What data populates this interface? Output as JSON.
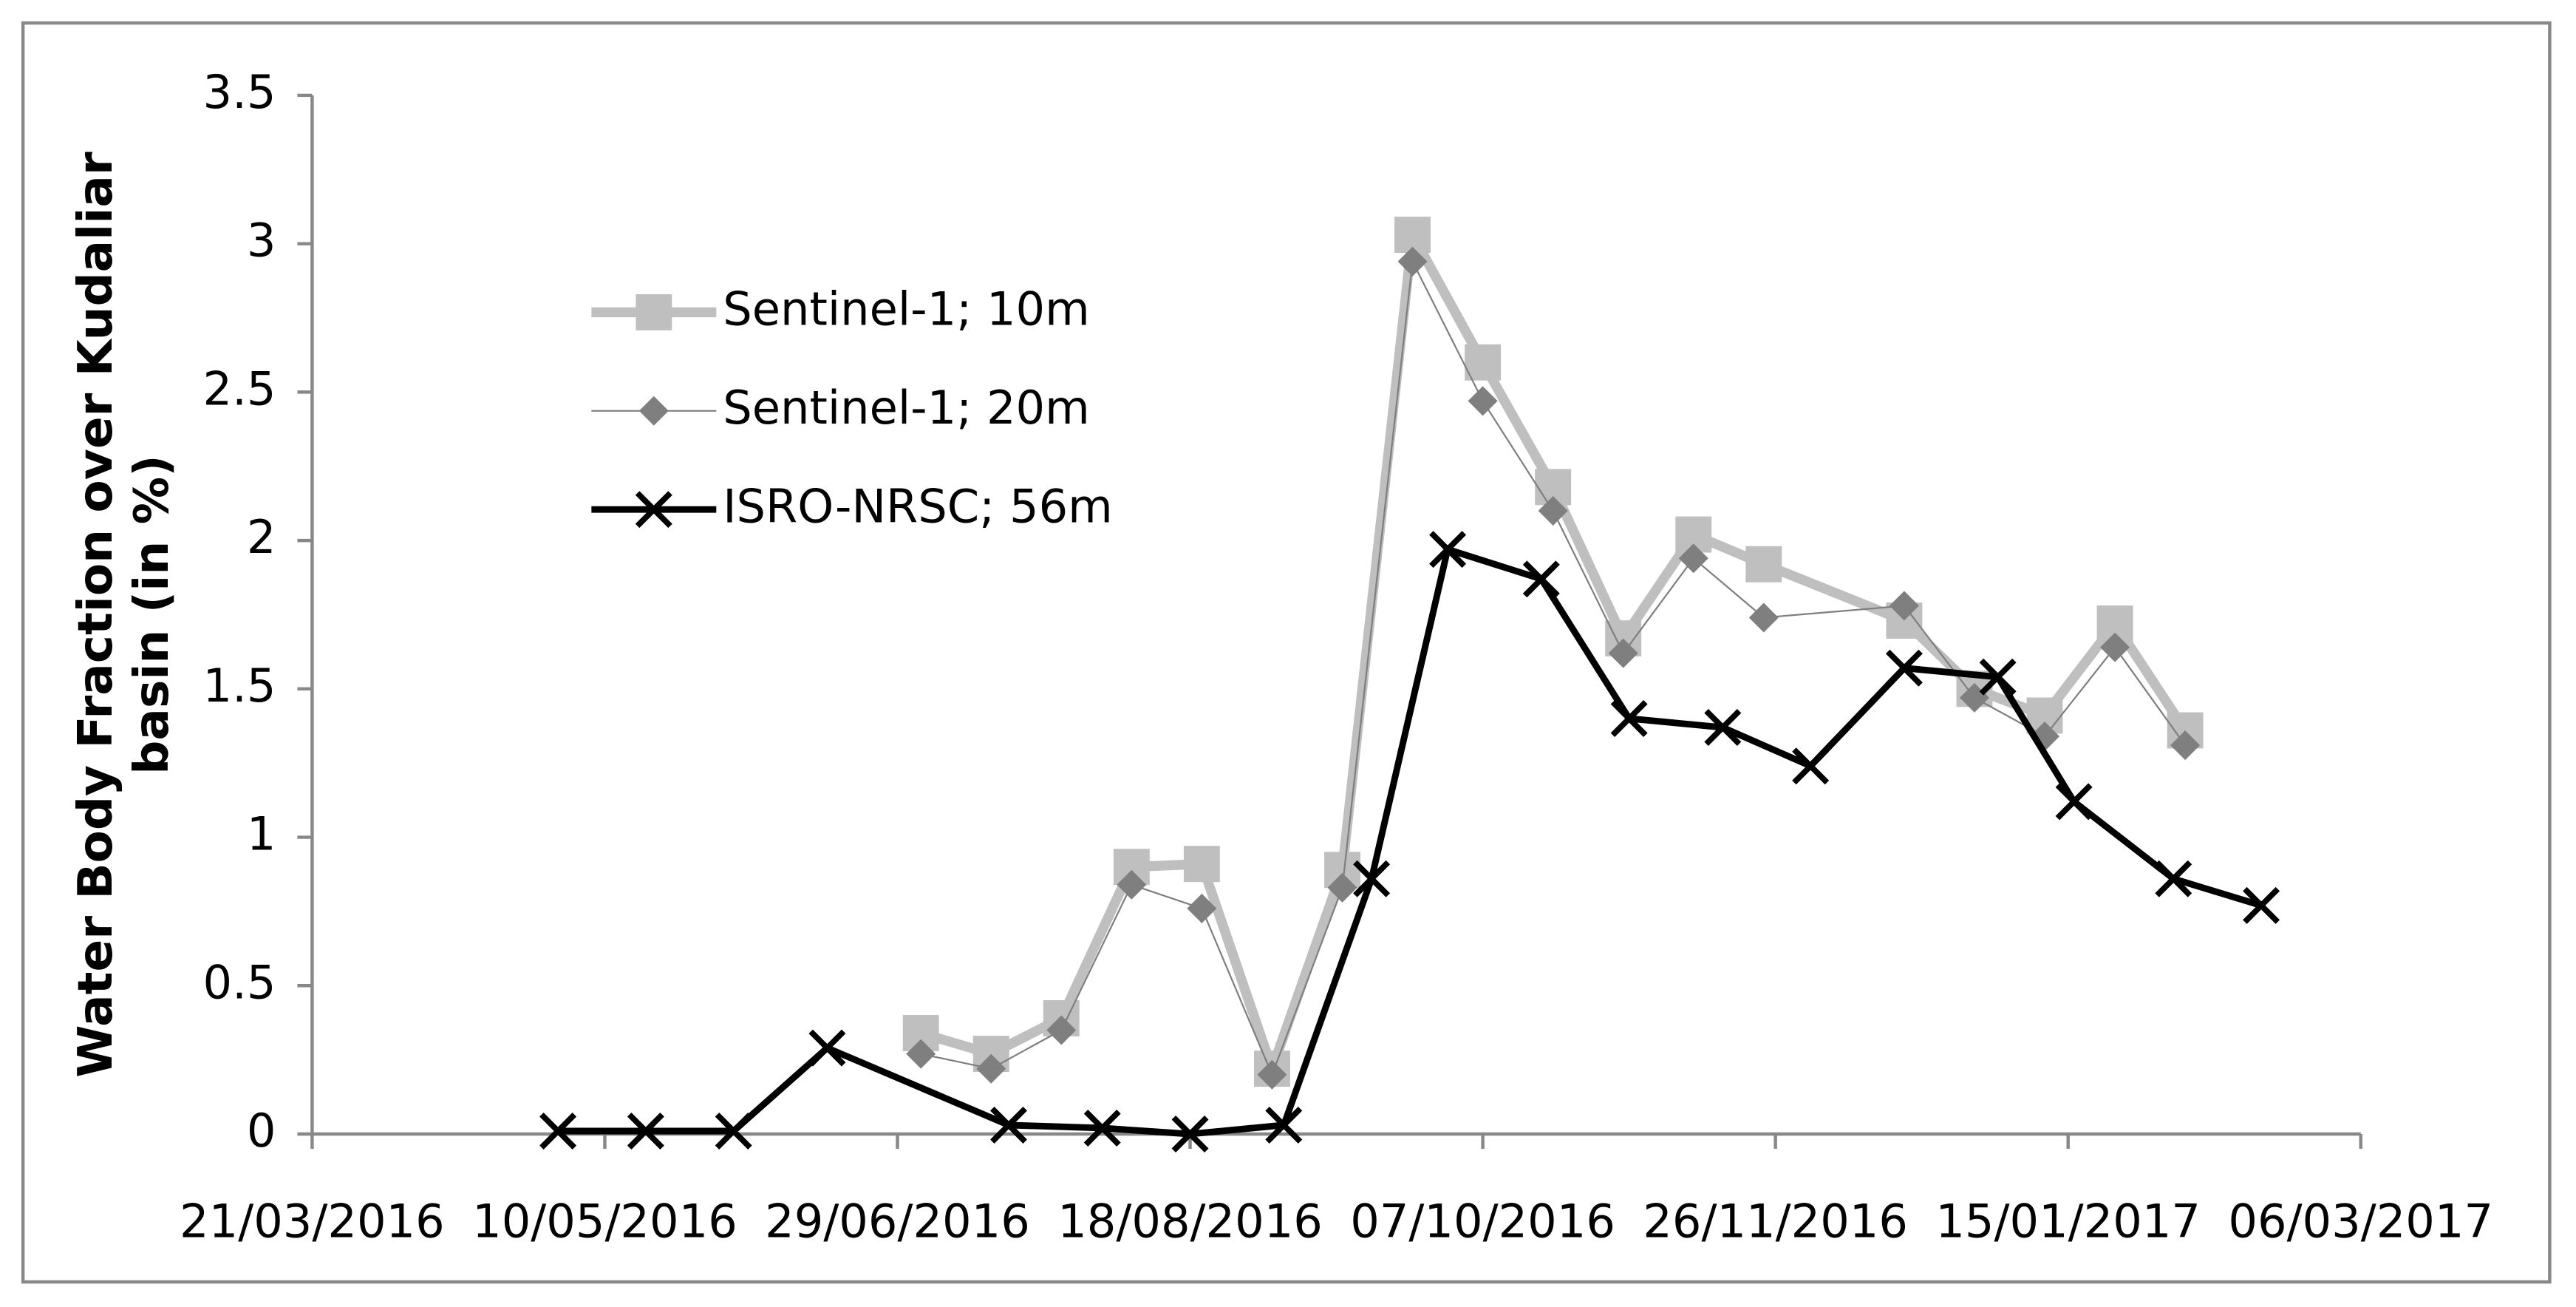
{
  "chart_data": {
    "type": "line",
    "ylabel": "Water Body Fraction over Kudaliar basin (in %)",
    "xlim": [
      "21/03/2016",
      "06/03/2017"
    ],
    "xticks": [
      "21/03/2016",
      "10/05/2016",
      "29/06/2016",
      "18/08/2016",
      "07/10/2016",
      "26/11/2016",
      "15/01/2017",
      "06/03/2017"
    ],
    "ylim": [
      0,
      3.5
    ],
    "yticks": [
      0,
      0.5,
      1,
      1.5,
      2,
      2.5,
      3,
      3.5
    ],
    "grid": false,
    "legend": "upper-left",
    "series": [
      {
        "name": "Sentinel-1; 10m",
        "color": "#bfbfbf",
        "marker": "square",
        "x": [
          "03/07/2016",
          "15/07/2016",
          "27/07/2016",
          "08/08/2016",
          "20/08/2016",
          "01/09/2016",
          "13/09/2016",
          "25/09/2016",
          "07/10/2016",
          "19/10/2016",
          "31/10/2016",
          "12/11/2016",
          "24/11/2016",
          "18/12/2016",
          "30/12/2016",
          "11/01/2017",
          "23/01/2017",
          "04/02/2017"
        ],
        "values": [
          0.34,
          0.27,
          0.39,
          0.9,
          0.91,
          0.22,
          0.89,
          3.03,
          2.6,
          2.18,
          1.67,
          2.02,
          1.92,
          1.73,
          1.5,
          1.41,
          1.72,
          1.36
        ]
      },
      {
        "name": "Sentinel-1; 20m",
        "color": "#7f7f7f",
        "marker": "diamond",
        "x": [
          "03/07/2016",
          "15/07/2016",
          "27/07/2016",
          "08/08/2016",
          "20/08/2016",
          "01/09/2016",
          "13/09/2016",
          "25/09/2016",
          "07/10/2016",
          "19/10/2016",
          "31/10/2016",
          "12/11/2016",
          "24/11/2016",
          "18/12/2016",
          "30/12/2016",
          "11/01/2017",
          "23/01/2017",
          "04/02/2017"
        ],
        "values": [
          0.27,
          0.22,
          0.35,
          0.84,
          0.76,
          0.2,
          0.83,
          2.94,
          2.47,
          2.1,
          1.62,
          1.94,
          1.74,
          1.78,
          1.47,
          1.34,
          1.64,
          1.31
        ]
      },
      {
        "name": "ISRO-NRSC; 56m",
        "color": "#000000",
        "marker": "x",
        "x": [
          "02/05/2016",
          "17/05/2016",
          "01/06/2016",
          "17/06/2016",
          "18/07/2016",
          "03/08/2016",
          "18/08/2016",
          "03/09/2016",
          "18/09/2016",
          "01/10/2016",
          "17/10/2016",
          "01/11/2016",
          "17/11/2016",
          "02/12/2016",
          "18/12/2016",
          "03/01/2017",
          "16/01/2017",
          "02/02/2017",
          "17/02/2017"
        ],
        "values": [
          0.01,
          0.01,
          0.01,
          0.29,
          0.03,
          0.02,
          0.0,
          0.03,
          0.86,
          1.97,
          1.87,
          1.4,
          1.37,
          1.24,
          1.57,
          1.54,
          1.12,
          0.86,
          0.77
        ]
      }
    ]
  }
}
